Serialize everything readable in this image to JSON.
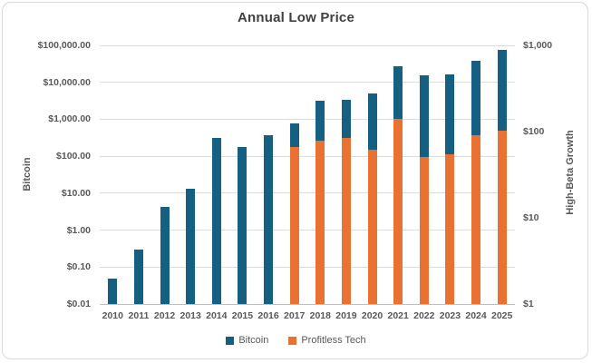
{
  "chart_data": {
    "type": "bar",
    "title": "Annual Low Price",
    "categories": [
      "2010",
      "2011",
      "2012",
      "2013",
      "2014",
      "2015",
      "2016",
      "2017",
      "2018",
      "2019",
      "2020",
      "2021",
      "2022",
      "2023",
      "2024",
      "2025"
    ],
    "series": [
      {
        "name": "Bitcoin",
        "axis": "left",
        "color": "#156082",
        "values": [
          0.05,
          0.3,
          4.2,
          13.2,
          310,
          178,
          365,
          780,
          3200,
          3400,
          4900,
          28000,
          15500,
          16500,
          38500,
          75000
        ]
      },
      {
        "name": "Profitless Tech",
        "axis": "right",
        "color": "#E97132",
        "values": [
          null,
          null,
          null,
          null,
          null,
          null,
          null,
          66,
          79,
          84,
          62,
          139,
          51,
          55,
          91,
          102
        ]
      }
    ],
    "left_axis": {
      "label": "Bitcoin",
      "scale": "log",
      "min": 0.01,
      "max": 100000,
      "ticks": [
        {
          "label": "$100,000.00",
          "value": 100000
        },
        {
          "label": "$10,000.00",
          "value": 10000
        },
        {
          "label": "$1,000.00",
          "value": 1000
        },
        {
          "label": "$100.00",
          "value": 100
        },
        {
          "label": "$10.00",
          "value": 10
        },
        {
          "label": "$1.00",
          "value": 1
        },
        {
          "label": "$0.10",
          "value": 0.1
        },
        {
          "label": "$0.01",
          "value": 0.01
        }
      ]
    },
    "right_axis": {
      "label": "High-Beta Growth",
      "scale": "log",
      "min": 1,
      "max": 1000,
      "ticks": [
        {
          "label": "$1,000",
          "value": 1000
        },
        {
          "label": "$100",
          "value": 100
        },
        {
          "label": "$10",
          "value": 10
        },
        {
          "label": "$1",
          "value": 1
        }
      ]
    },
    "legend_position": "bottom",
    "grid": true,
    "colors": {
      "grid": "#DCDCDC",
      "axis_line": "#BFBFBF",
      "title_text": "#404040",
      "axis_text": "#595959",
      "frame_border": "#D9D9D9"
    }
  }
}
